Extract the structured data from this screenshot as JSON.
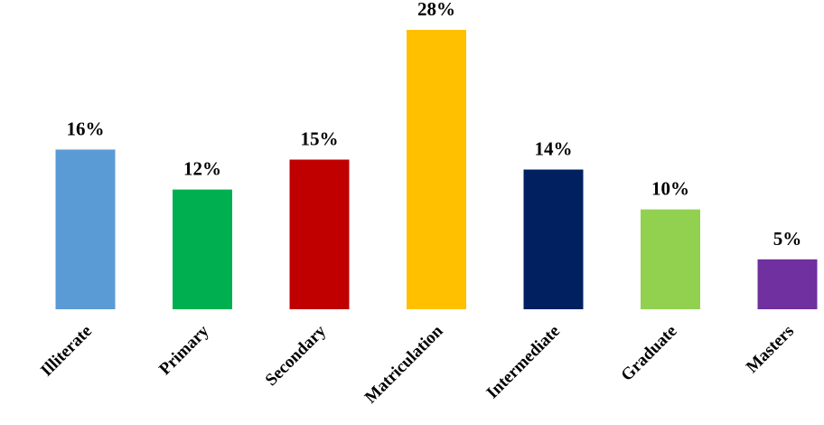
{
  "chart_data": {
    "type": "bar",
    "categories": [
      "Illiterate",
      "Primary",
      "Secondary",
      "Matriculation",
      "Intermediate",
      "Graduate",
      "Masters"
    ],
    "values": [
      16,
      12,
      15,
      28,
      14,
      10,
      5
    ],
    "value_labels": [
      "16%",
      "12%",
      "15%",
      "28%",
      "14%",
      "10%",
      "5%"
    ],
    "colors": [
      "#5B9BD5",
      "#00B050",
      "#C00000",
      "#FFC000",
      "#002060",
      "#92D050",
      "#7030A0"
    ],
    "unit": "%",
    "title": "",
    "xlabel": "",
    "ylabel": "",
    "ylim": [
      0,
      28
    ],
    "grid": false,
    "legend": "none"
  }
}
